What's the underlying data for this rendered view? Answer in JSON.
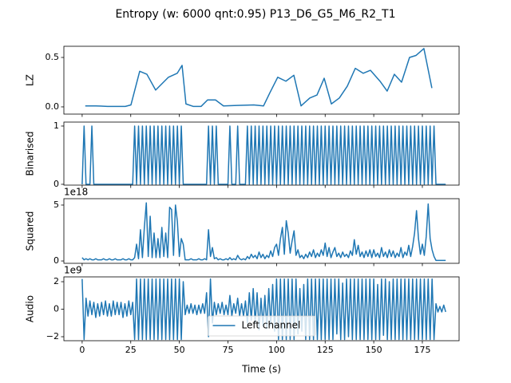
{
  "title": "Entropy (w: 6000 qnt:0.95) P13_D6_G5_M6_R2_T1",
  "chart_data": [
    {
      "type": "line",
      "ylabel": "LZ",
      "color": "#1f77b4",
      "xlim": [
        -9.4,
        193.9
      ],
      "xticks": [
        0,
        25,
        50,
        75,
        100,
        125,
        150,
        175
      ],
      "ylim": [
        -0.073,
        0.613
      ],
      "yticks": [
        {
          "value": 0,
          "label": "0.0"
        },
        0.5
      ],
      "x": [
        1.6,
        7.0,
        13.1,
        19.3,
        22.2,
        25.1,
        29.6,
        33.3,
        37.8,
        44.4,
        48.9,
        51.4,
        53.4,
        57.1,
        61.2,
        64.5,
        68.6,
        72.7,
        79.7,
        88.3,
        93.3,
        96.5,
        100.6,
        104.8,
        108.9,
        112.6,
        117.1,
        120.8,
        124.5,
        128.2,
        132.3,
        136.4,
        140.5,
        144.6,
        148.3,
        153.2,
        156.9,
        160.6,
        164.3,
        168.4,
        171.7,
        175.8,
        179.9
      ],
      "values": [
        0.01,
        0.01,
        0.005,
        0.005,
        0.005,
        0.02,
        0.36,
        0.33,
        0.17,
        0.3,
        0.34,
        0.42,
        0.03,
        0.005,
        0.005,
        0.07,
        0.07,
        0.01,
        0.015,
        0.02,
        0.01,
        0.14,
        0.3,
        0.26,
        0.32,
        0.01,
        0.09,
        0.12,
        0.29,
        0.03,
        0.09,
        0.21,
        0.39,
        0.34,
        0.37,
        0.26,
        0.16,
        0.33,
        0.25,
        0.5,
        0.52,
        0.59,
        0.19
      ]
    },
    {
      "type": "line",
      "ylabel": "Binarised",
      "color": "#1f77b4",
      "xlim": [
        -9.4,
        193.9
      ],
      "xticks": [
        0,
        25,
        50,
        75,
        100,
        125,
        150,
        175
      ],
      "ylim": [
        -0.014,
        1.068
      ],
      "yticks": [
        0,
        1
      ],
      "x": [
        0,
        1,
        2,
        3,
        4,
        5,
        6,
        7,
        8,
        9,
        10,
        11,
        12,
        13,
        14,
        15,
        16,
        17,
        18,
        19,
        20,
        21,
        22,
        23,
        24,
        25,
        26,
        27,
        28,
        29,
        30,
        31,
        32,
        33,
        34,
        35,
        36,
        37,
        38,
        39,
        40,
        41,
        42,
        43,
        44,
        45,
        46,
        47,
        48,
        49,
        50,
        51,
        52,
        53,
        54,
        55,
        56,
        57,
        58,
        59,
        60,
        61,
        62,
        63,
        64,
        65,
        66,
        67,
        68,
        69,
        70,
        71,
        72,
        73,
        74,
        75,
        76,
        77,
        78,
        79,
        80,
        81,
        82,
        83,
        84,
        85,
        86,
        87,
        88,
        89,
        90,
        91,
        92,
        93,
        94,
        95,
        96,
        97,
        98,
        99,
        100,
        101,
        102,
        103,
        104,
        105,
        106,
        107,
        108,
        109,
        110,
        111,
        112,
        113,
        114,
        115,
        116,
        117,
        118,
        119,
        120,
        121,
        122,
        123,
        124,
        125,
        126,
        127,
        128,
        129,
        130,
        131,
        132,
        133,
        134,
        135,
        136,
        137,
        138,
        139,
        140,
        141,
        142,
        143,
        144,
        145,
        146,
        147,
        148,
        149,
        150,
        151,
        152,
        153,
        154,
        155,
        156,
        157,
        158,
        159,
        160,
        161,
        162,
        163,
        164,
        165,
        166,
        167,
        168,
        169,
        170,
        171,
        172,
        173,
        174,
        175,
        176,
        177,
        178,
        179,
        180,
        181,
        182,
        183,
        184,
        185,
        186,
        187
      ],
      "values": [
        0,
        1,
        0,
        0,
        0,
        1,
        0,
        0,
        0,
        0,
        0,
        0,
        0,
        0,
        0,
        0,
        0,
        0,
        0,
        0,
        0,
        0,
        0,
        0,
        0,
        0,
        0,
        1,
        0,
        1,
        0,
        1,
        0,
        1,
        0,
        1,
        0,
        1,
        0,
        1,
        0,
        1,
        0,
        1,
        0,
        1,
        0,
        1,
        0,
        1,
        0,
        1,
        0,
        0,
        0,
        0,
        0,
        0,
        0,
        0,
        0,
        0,
        0,
        0,
        0,
        1,
        0,
        1,
        0,
        1,
        0,
        0,
        0,
        0,
        0,
        0,
        1,
        0,
        0,
        0,
        1,
        0,
        0,
        0,
        0,
        1,
        0,
        1,
        0,
        1,
        0,
        1,
        0,
        1,
        0,
        1,
        0,
        1,
        0,
        1,
        0,
        1,
        0,
        1,
        0,
        1,
        0,
        1,
        0,
        1,
        0,
        1,
        0,
        1,
        0,
        1,
        0,
        1,
        0,
        1,
        0,
        1,
        0,
        1,
        0,
        1,
        0,
        1,
        0,
        1,
        0,
        1,
        0,
        1,
        0,
        1,
        0,
        1,
        0,
        1,
        0,
        1,
        0,
        1,
        0,
        1,
        0,
        1,
        0,
        1,
        0,
        1,
        0,
        1,
        0,
        1,
        0,
        1,
        0,
        1,
        0,
        1,
        0,
        1,
        0,
        1,
        0,
        1,
        0,
        1,
        0,
        1,
        0,
        1,
        0,
        1,
        0,
        1,
        0,
        1,
        0,
        1,
        0,
        0,
        0,
        0,
        0,
        0
      ]
    },
    {
      "type": "line",
      "ylabel": "Squared",
      "offset_label": "1e18",
      "color": "#1f77b4",
      "xlim": [
        -9.4,
        193.9
      ],
      "xticks": [
        0,
        25,
        50,
        75,
        100,
        125,
        150,
        175
      ],
      "ylim": [
        -0.21,
        5.57
      ],
      "yticks": [
        0,
        5
      ],
      "x": [
        0,
        1,
        2,
        3,
        4,
        5,
        6,
        7,
        8,
        9,
        10,
        11,
        12,
        13,
        14,
        15,
        16,
        17,
        18,
        19,
        20,
        21,
        22,
        23,
        24,
        25,
        26,
        27,
        28,
        29,
        30,
        31,
        32,
        33,
        34,
        35,
        36,
        37,
        38,
        39,
        40,
        41,
        42,
        43,
        44,
        45,
        46,
        47,
        48,
        49,
        50,
        51,
        52,
        53,
        54,
        55,
        56,
        57,
        58,
        59,
        60,
        61,
        62,
        63,
        64,
        65,
        66,
        67,
        68,
        69,
        70,
        71,
        72,
        73,
        74,
        75,
        76,
        77,
        78,
        79,
        80,
        81,
        82,
        83,
        84,
        85,
        86,
        87,
        88,
        89,
        90,
        91,
        92,
        93,
        94,
        95,
        96,
        97,
        98,
        99,
        100,
        101,
        102,
        103,
        104,
        105,
        106,
        107,
        108,
        109,
        110,
        111,
        112,
        113,
        114,
        115,
        116,
        117,
        118,
        119,
        120,
        121,
        122,
        123,
        124,
        125,
        126,
        127,
        128,
        129,
        130,
        131,
        132,
        133,
        134,
        135,
        136,
        137,
        138,
        139,
        140,
        141,
        142,
        143,
        144,
        145,
        146,
        147,
        148,
        149,
        150,
        151,
        152,
        153,
        154,
        155,
        156,
        157,
        158,
        159,
        160,
        161,
        162,
        163,
        164,
        165,
        166,
        167,
        168,
        169,
        170,
        171,
        172,
        173,
        174,
        175,
        176,
        177,
        178,
        179,
        180,
        181,
        182,
        183,
        184,
        185,
        186,
        187
      ],
      "values": [
        0.3,
        0.1,
        0.2,
        0.1,
        0.2,
        0.1,
        0.1,
        0.2,
        0.1,
        0.1,
        0.1,
        0.2,
        0.1,
        0.1,
        0.2,
        0.1,
        0.1,
        0.2,
        0.1,
        0.1,
        0.1,
        0.2,
        0.1,
        0.1,
        0.2,
        0.1,
        0.1,
        0.3,
        1.5,
        0.2,
        2.8,
        0.3,
        3.0,
        5.2,
        0.4,
        4.0,
        0.3,
        2.5,
        0.3,
        2.0,
        0.3,
        3.0,
        0.4,
        2.5,
        0.3,
        4.8,
        4.6,
        0.5,
        5.0,
        3.5,
        0.4,
        2.0,
        1.5,
        0.1,
        0.1,
        0.1,
        0.2,
        0.1,
        0.1,
        0.1,
        0.2,
        0.1,
        0.1,
        0.2,
        0.1,
        2.8,
        0.4,
        1.2,
        0.2,
        0.3,
        0.1,
        0.2,
        0.1,
        0.1,
        0.2,
        0.1,
        0.3,
        0.1,
        0.2,
        0.1,
        0.5,
        0.2,
        0.1,
        0.2,
        0.1,
        0.4,
        0.2,
        0.6,
        0.3,
        0.5,
        0.2,
        0.8,
        0.3,
        0.6,
        0.2,
        0.5,
        0.3,
        0.9,
        0.4,
        1.2,
        1.5,
        0.5,
        2.0,
        3.0,
        0.6,
        3.6,
        2.5,
        0.7,
        1.8,
        2.7,
        0.5,
        1.0,
        0.3,
        0.5,
        0.2,
        0.6,
        0.3,
        0.8,
        0.4,
        1.0,
        0.3,
        0.7,
        0.4,
        1.0,
        0.5,
        1.6,
        0.4,
        1.2,
        0.3,
        0.8,
        1.2,
        0.4,
        0.7,
        0.3,
        0.8,
        0.4,
        0.6,
        0.3,
        0.9,
        0.5,
        1.9,
        0.6,
        1.4,
        0.4,
        0.8,
        0.3,
        0.9,
        0.4,
        1.0,
        0.3,
        1.0,
        0.4,
        0.7,
        0.3,
        1.2,
        0.4,
        0.8,
        0.3,
        1.0,
        0.4,
        0.9,
        0.3,
        0.7,
        0.4,
        1.2,
        0.3,
        0.8,
        0.5,
        1.4,
        0.4,
        1.3,
        2.5,
        4.5,
        2.0,
        0.6,
        1.5,
        0.5,
        2.2,
        5.1,
        2.0,
        1.0,
        0.4,
        0.05,
        0.05,
        0.05,
        0.05,
        0.05,
        0.05
      ]
    },
    {
      "type": "line",
      "ylabel": "Audio",
      "xlabel": "Time (s)",
      "offset_label": "1e9",
      "legend": "lower center",
      "xlim": [
        -9.4,
        193.9
      ],
      "xticks": [
        0,
        25,
        50,
        75,
        100,
        125,
        150,
        175
      ],
      "ylim": [
        -2.29,
        2.35
      ],
      "yticks": [
        {
          "value": -2,
          "label": "−2"
        },
        0,
        2
      ],
      "x": [
        0,
        1,
        2,
        3,
        4,
        5,
        6,
        7,
        8,
        9,
        10,
        11,
        12,
        13,
        14,
        15,
        16,
        17,
        18,
        19,
        20,
        21,
        22,
        23,
        24,
        25,
        26,
        27,
        28,
        29,
        30,
        31,
        32,
        33,
        34,
        35,
        36,
        37,
        38,
        39,
        40,
        41,
        42,
        43,
        44,
        45,
        46,
        47,
        48,
        49,
        50,
        51,
        52,
        53,
        54,
        55,
        56,
        57,
        58,
        59,
        60,
        61,
        62,
        63,
        64,
        65,
        66,
        67,
        68,
        69,
        70,
        71,
        72,
        73,
        74,
        75,
        76,
        77,
        78,
        79,
        80,
        81,
        82,
        83,
        84,
        85,
        86,
        87,
        88,
        89,
        90,
        91,
        92,
        93,
        94,
        95,
        96,
        97,
        98,
        99,
        100,
        101,
        102,
        103,
        104,
        105,
        106,
        107,
        108,
        109,
        110,
        111,
        112,
        113,
        114,
        115,
        116,
        117,
        118,
        119,
        120,
        121,
        122,
        123,
        124,
        125,
        126,
        127,
        128,
        129,
        130,
        131,
        132,
        133,
        134,
        135,
        136,
        137,
        138,
        139,
        140,
        141,
        142,
        143,
        144,
        145,
        146,
        147,
        148,
        149,
        150,
        151,
        152,
        153,
        154,
        155,
        156,
        157,
        158,
        159,
        160,
        161,
        162,
        163,
        164,
        165,
        166,
        167,
        168,
        169,
        170,
        171,
        172,
        173,
        174,
        175,
        176,
        177,
        178,
        179,
        180,
        181,
        182,
        183,
        184,
        185,
        186,
        187
      ],
      "series": [
        {
          "name": "Left channel",
          "color": "#1f77b4",
          "values": [
            2.2,
            -2.2,
            0.8,
            -0.5,
            0.6,
            -0.4,
            0.5,
            -0.6,
            0.4,
            -0.5,
            0.5,
            -0.4,
            0.6,
            -0.5,
            0.4,
            -0.5,
            0.6,
            -0.4,
            0.5,
            -0.4,
            0.5,
            -0.6,
            0.4,
            -0.5,
            0.6,
            -0.4,
            0.5,
            -2.2,
            2.2,
            -2.2,
            2.2,
            -2.2,
            2.2,
            -2.2,
            2.2,
            -2.2,
            2.2,
            -2.2,
            2.2,
            -2.2,
            2.2,
            -2.2,
            2.2,
            -2.2,
            2.2,
            -2.2,
            2.2,
            -2.2,
            2.2,
            -2.2,
            2.2,
            -2.2,
            2.0,
            -0.4,
            0.3,
            -0.3,
            0.4,
            -0.3,
            0.3,
            -0.4,
            0.3,
            -0.3,
            0.4,
            -0.3,
            1.2,
            -2.0,
            2.2,
            -1.0,
            0.5,
            -0.4,
            0.4,
            -0.3,
            0.5,
            -0.4,
            0.3,
            -0.4,
            1.0,
            -0.5,
            0.4,
            -0.3,
            0.8,
            -0.5,
            0.4,
            -0.5,
            0.6,
            -1.0,
            1.2,
            -0.8,
            1.5,
            -1.0,
            1.2,
            -1.5,
            0.8,
            -1.2,
            1.0,
            -1.4,
            1.5,
            -1.2,
            1.8,
            -1.6,
            2.2,
            -2.2,
            2.2,
            -2.2,
            2.2,
            -2.2,
            2.2,
            -2.2,
            2.2,
            -2.2,
            2.2,
            -1.8,
            1.5,
            -1.6,
            1.8,
            -2.2,
            2.2,
            -2.2,
            2.2,
            -2.2,
            2.2,
            -2.2,
            2.2,
            -2.2,
            2.2,
            -2.2,
            2.2,
            -2.2,
            2.2,
            -2.2,
            2.2,
            -1.8,
            2.2,
            -2.2,
            1.9,
            -2.2,
            2.2,
            -2.0,
            2.2,
            -2.2,
            2.2,
            -2.2,
            2.2,
            -2.2,
            2.2,
            -2.2,
            2.2,
            -2.2,
            2.2,
            -2.2,
            2.2,
            -2.2,
            1.8,
            -2.2,
            2.2,
            -1.9,
            2.2,
            -2.2,
            2.0,
            -2.2,
            2.2,
            -2.2,
            2.2,
            -2.2,
            2.2,
            -2.2,
            2.2,
            -2.2,
            2.2,
            -2.2,
            2.2,
            -2.2,
            2.2,
            -2.2,
            2.2,
            -2.2,
            2.2,
            -2.2,
            2.2,
            -2.2,
            2.2,
            -2.2,
            0.4,
            -0.2,
            0.2,
            -0.2,
            0.3,
            -0.2
          ]
        }
      ]
    }
  ]
}
